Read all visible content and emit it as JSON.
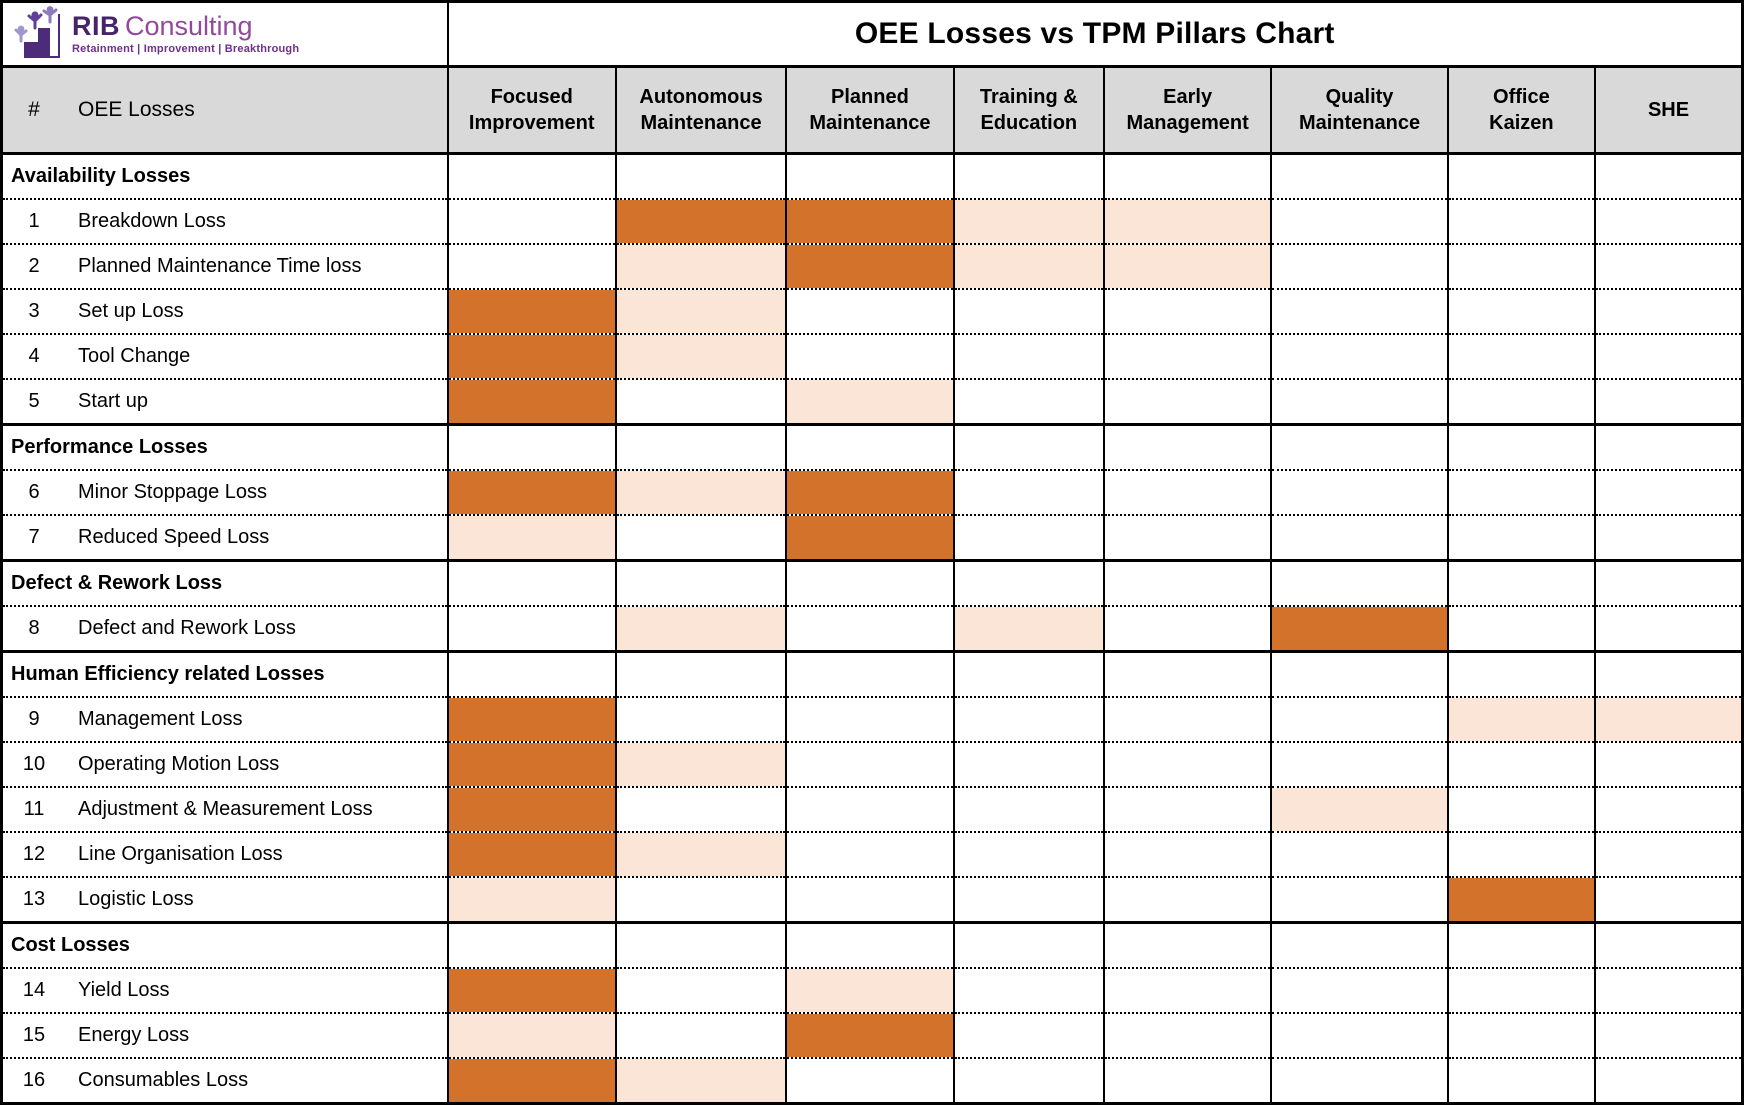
{
  "logo": {
    "brand_bold": "RIB",
    "brand_rest": "Consulting",
    "tagline": "Retainment | Improvement | Breakthrough",
    "icon": "climbing-figures-on-stairs"
  },
  "title": "OEE Losses vs TPM Pillars Chart",
  "colors": {
    "strong_cell": "#D2722B",
    "weak_cell": "#FBE5D6",
    "header_bg": "#D9D9D9",
    "border": "#000000",
    "brand_dark_purple": "#46246B",
    "brand_purple": "#93499B",
    "tagline_purple": "#702E8F",
    "figure_light": "#9E97CE",
    "figure_dark": "#5F3F99",
    "figure_mid": "#8A7BBE"
  },
  "header": {
    "hash": "#",
    "losses_label": "OEE Losses",
    "pillars": [
      {
        "lines": [
          "Focused",
          "Improvement"
        ]
      },
      {
        "lines": [
          "Autonomous",
          "Maintenance"
        ]
      },
      {
        "lines": [
          "Planned",
          "Maintenance"
        ]
      },
      {
        "lines": [
          "Training &",
          "Education"
        ]
      },
      {
        "lines": [
          "Early",
          "Management"
        ]
      },
      {
        "lines": [
          "Quality",
          "Maintenance"
        ]
      },
      {
        "lines": [
          "Office",
          "Kaizen"
        ]
      },
      {
        "lines": [
          "SHE"
        ]
      }
    ]
  },
  "chart_data": {
    "type": "heatmap",
    "title": "OEE Losses vs TPM Pillars Chart",
    "columns": [
      "Focused Improvement",
      "Autonomous Maintenance",
      "Planned Maintenance",
      "Training & Education",
      "Early Management",
      "Quality Maintenance",
      "Office Kaizen",
      "SHE"
    ],
    "cell_legend": {
      "S": "strong relation (dark orange cell)",
      "W": "weak relation (light orange cell)",
      "": "no relation (white cell)"
    },
    "sections": [
      {
        "name": "Availability Losses",
        "rows": [
          {
            "num": "1",
            "label": "Breakdown Loss",
            "cells": [
              "",
              "S",
              "S",
              "W",
              "W",
              "",
              "",
              ""
            ]
          },
          {
            "num": "2",
            "label": "Planned Maintenance Time loss",
            "cells": [
              "",
              "W",
              "S",
              "W",
              "W",
              "",
              "",
              ""
            ]
          },
          {
            "num": "3",
            "label": "Set up Loss",
            "cells": [
              "S",
              "W",
              "",
              "",
              "",
              "",
              "",
              ""
            ]
          },
          {
            "num": "4",
            "label": "Tool Change",
            "cells": [
              "S",
              "W",
              "",
              "",
              "",
              "",
              "",
              ""
            ]
          },
          {
            "num": "5",
            "label": "Start up",
            "cells": [
              "S",
              "",
              "W",
              "",
              "",
              "",
              "",
              ""
            ]
          }
        ]
      },
      {
        "name": "Performance Losses",
        "rows": [
          {
            "num": "6",
            "label": "Minor Stoppage Loss",
            "cells": [
              "S",
              "W",
              "S",
              "",
              "",
              "",
              "",
              ""
            ]
          },
          {
            "num": "7",
            "label": "Reduced Speed Loss",
            "cells": [
              "W",
              "",
              "S",
              "",
              "",
              "",
              "",
              ""
            ]
          }
        ]
      },
      {
        "name": "Defect & Rework Loss",
        "rows": [
          {
            "num": "8",
            "label": "Defect and Rework Loss",
            "cells": [
              "",
              "W",
              "",
              "W",
              "",
              "S",
              "",
              ""
            ]
          }
        ]
      },
      {
        "name": "Human Efficiency related Losses",
        "rows": [
          {
            "num": "9",
            "label": "Management Loss",
            "cells": [
              "S",
              "",
              "",
              "",
              "",
              "",
              "W",
              "W"
            ]
          },
          {
            "num": "10",
            "label": "Operating Motion Loss",
            "cells": [
              "S",
              "W",
              "",
              "",
              "",
              "",
              "",
              ""
            ]
          },
          {
            "num": "11",
            "label": "Adjustment & Measurement Loss",
            "cells": [
              "S",
              "",
              "",
              "",
              "",
              "W",
              "",
              ""
            ]
          },
          {
            "num": "12",
            "label": "Line Organisation Loss",
            "cells": [
              "S",
              "W",
              "",
              "",
              "",
              "",
              "",
              ""
            ]
          },
          {
            "num": "13",
            "label": "Logistic Loss",
            "cells": [
              "W",
              "",
              "",
              "",
              "",
              "",
              "S",
              ""
            ]
          }
        ]
      },
      {
        "name": "Cost Losses",
        "rows": [
          {
            "num": "14",
            "label": "Yield Loss",
            "cells": [
              "S",
              "",
              "W",
              "",
              "",
              "",
              "",
              ""
            ]
          },
          {
            "num": "15",
            "label": "Energy Loss",
            "cells": [
              "W",
              "",
              "S",
              "",
              "",
              "",
              "",
              ""
            ]
          },
          {
            "num": "16",
            "label": "Consumables Loss",
            "cells": [
              "S",
              "W",
              "",
              "",
              "",
              "",
              "",
              ""
            ]
          }
        ]
      }
    ]
  }
}
